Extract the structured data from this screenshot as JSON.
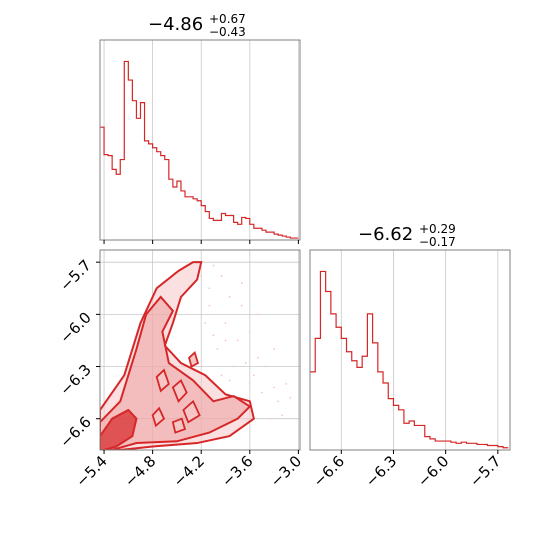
{
  "colors": {
    "series": "#d62728",
    "fill_light": "#f6c6c6",
    "fill_mid": "#ee9a9a",
    "grid": "#c8c8c8",
    "frame": "#808080"
  },
  "chart_data": [
    {
      "type": "area",
      "panel": "top-left marginal histogram (parameter 1)",
      "title_value": "−4.86",
      "title_upper": "+0.67",
      "title_lower": "−0.43",
      "xlim": [
        -5.45,
        -2.98
      ],
      "grid": true,
      "bin_edges": [
        -5.45,
        -5.4,
        -5.35,
        -5.3,
        -5.25,
        -5.2,
        -5.15,
        -5.1,
        -5.05,
        -5.0,
        -4.95,
        -4.9,
        -4.85,
        -4.8,
        -4.75,
        -4.7,
        -4.65,
        -4.6,
        -4.55,
        -4.5,
        -4.45,
        -4.4,
        -4.35,
        -4.3,
        -4.25,
        -4.2,
        -4.15,
        -4.1,
        -4.05,
        -4.0,
        -3.95,
        -3.9,
        -3.85,
        -3.8,
        -3.75,
        -3.7,
        -3.65,
        -3.6,
        -3.55,
        -3.5,
        -3.45,
        -3.4,
        -3.35,
        -3.3,
        -3.25,
        -3.2,
        -3.15,
        -3.1,
        -3.05,
        -3.0
      ],
      "counts": [
        115,
        87,
        86,
        72,
        67,
        82,
        182,
        163,
        142,
        124,
        140,
        101,
        98,
        94,
        90,
        86,
        82,
        62,
        54,
        60,
        50,
        44,
        44,
        42,
        40,
        35,
        29,
        22,
        20,
        20,
        27,
        25,
        25,
        18,
        16,
        23,
        22,
        16,
        12,
        12,
        10,
        8,
        8,
        6,
        5,
        4,
        3,
        2,
        2
      ],
      "x_ticks": [
        -5.4,
        -4.8,
        -4.2,
        -3.6,
        -3.0
      ]
    },
    {
      "type": "area",
      "panel": "bottom-right marginal histogram (parameter 2)",
      "title_value": "−6.62",
      "title_upper": "+0.29",
      "title_lower": "−0.17",
      "xlim": [
        -6.78,
        -5.63
      ],
      "grid": true,
      "bin_edges": [
        -6.78,
        -6.75,
        -6.72,
        -6.69,
        -6.66,
        -6.63,
        -6.6,
        -6.57,
        -6.54,
        -6.51,
        -6.48,
        -6.45,
        -6.42,
        -6.39,
        -6.36,
        -6.33,
        -6.3,
        -6.27,
        -6.24,
        -6.21,
        -6.18,
        -6.15,
        -6.12,
        -6.09,
        -6.06,
        -6.03,
        -6.0,
        -5.97,
        -5.94,
        -5.91,
        -5.88,
        -5.85,
        -5.82,
        -5.79,
        -5.76,
        -5.73,
        -5.7,
        -5.67,
        -5.64
      ],
      "counts": [
        70,
        100,
        160,
        142,
        122,
        110,
        100,
        88,
        80,
        74,
        84,
        122,
        96,
        70,
        60,
        46,
        40,
        36,
        24,
        26,
        22,
        22,
        12,
        10,
        8,
        8,
        8,
        7,
        6,
        7,
        6,
        6,
        5,
        5,
        4,
        4,
        3,
        2
      ],
      "x_ticks": [
        "−6.6",
        "−6.3",
        "−6.0",
        "−5.7"
      ],
      "x_tick_values": [
        -6.6,
        -6.3,
        -6.0,
        -5.7
      ]
    },
    {
      "type": "heatmap",
      "panel": "bottom-left 2D joint density (parameter 1 vs parameter 2)",
      "xlim": [
        -5.45,
        -2.98
      ],
      "ylim": [
        -6.78,
        -5.63
      ],
      "grid": true,
      "x_ticks": [
        -5.4,
        -4.8,
        -4.2,
        -3.6,
        -3.0
      ],
      "x_tick_labels": [
        "−5.4",
        "−4.8",
        "−4.2",
        "−3.6",
        "−3.0"
      ],
      "y_ticks": [
        -5.7,
        -6.0,
        -6.3,
        -6.6
      ],
      "y_tick_labels": [
        "−5.7",
        "−6.0",
        "−6.3",
        "−6.6"
      ],
      "high_density_region": [
        [
          -5.45,
          -6.78
        ],
        [
          -5.45,
          -6.7
        ],
        [
          -5.3,
          -6.6
        ],
        [
          -5.1,
          -6.55
        ],
        [
          -5.0,
          -6.6
        ],
        [
          -5.05,
          -6.7
        ],
        [
          -5.25,
          -6.76
        ],
        [
          -5.4,
          -6.78
        ]
      ],
      "mid_density_contour": [
        [
          -5.45,
          -6.78
        ],
        [
          -5.45,
          -6.62
        ],
        [
          -5.2,
          -6.5
        ],
        [
          -5.0,
          -6.2
        ],
        [
          -4.88,
          -6.0
        ],
        [
          -4.7,
          -5.9
        ],
        [
          -4.55,
          -5.98
        ],
        [
          -4.68,
          -6.1
        ],
        [
          -4.6,
          -6.28
        ],
        [
          -4.3,
          -6.38
        ],
        [
          -4.05,
          -6.5
        ],
        [
          -3.8,
          -6.47
        ],
        [
          -3.6,
          -6.53
        ],
        [
          -3.75,
          -6.6
        ],
        [
          -4.1,
          -6.68
        ],
        [
          -4.5,
          -6.73
        ],
        [
          -5.0,
          -6.74
        ],
        [
          -5.3,
          -6.78
        ]
      ],
      "outer_contour": [
        [
          -5.45,
          -6.78
        ],
        [
          -5.45,
          -6.55
        ],
        [
          -5.15,
          -6.35
        ],
        [
          -4.95,
          -6.05
        ],
        [
          -4.75,
          -5.85
        ],
        [
          -4.48,
          -5.75
        ],
        [
          -4.3,
          -5.7
        ],
        [
          -4.2,
          -5.7
        ],
        [
          -4.25,
          -5.8
        ],
        [
          -4.45,
          -5.9
        ],
        [
          -4.55,
          -6.05
        ],
        [
          -4.65,
          -6.18
        ],
        [
          -4.45,
          -6.28
        ],
        [
          -4.15,
          -6.35
        ],
        [
          -3.9,
          -6.46
        ],
        [
          -3.6,
          -6.5
        ],
        [
          -3.55,
          -6.6
        ],
        [
          -3.85,
          -6.7
        ],
        [
          -4.25,
          -6.74
        ],
        [
          -4.8,
          -6.76
        ],
        [
          -5.2,
          -6.78
        ]
      ],
      "small_contours": [
        [
          [
            -4.55,
            -6.42
          ],
          [
            -4.45,
            -6.38
          ],
          [
            -4.38,
            -6.45
          ],
          [
            -4.48,
            -6.5
          ]
        ],
        [
          [
            -4.42,
            -6.55
          ],
          [
            -4.3,
            -6.5
          ],
          [
            -4.22,
            -6.58
          ],
          [
            -4.36,
            -6.62
          ]
        ],
        [
          [
            -4.75,
            -6.36
          ],
          [
            -4.66,
            -6.32
          ],
          [
            -4.6,
            -6.4
          ],
          [
            -4.7,
            -6.44
          ]
        ],
        [
          [
            -4.55,
            -6.62
          ],
          [
            -4.44,
            -6.6
          ],
          [
            -4.4,
            -6.66
          ],
          [
            -4.52,
            -6.68
          ]
        ],
        [
          [
            -4.8,
            -6.58
          ],
          [
            -4.72,
            -6.54
          ],
          [
            -4.66,
            -6.6
          ],
          [
            -4.76,
            -6.64
          ]
        ],
        [
          [
            -4.35,
            -6.25
          ],
          [
            -4.28,
            -6.22
          ],
          [
            -4.24,
            -6.28
          ],
          [
            -4.32,
            -6.3
          ]
        ]
      ],
      "scatter_points": [
        [
          -4.05,
          -5.72
        ],
        [
          -3.95,
          -5.78
        ],
        [
          -3.85,
          -5.9
        ],
        [
          -3.7,
          -5.95
        ],
        [
          -4.1,
          -5.85
        ],
        [
          -3.9,
          -6.05
        ],
        [
          -3.75,
          -6.15
        ],
        [
          -3.6,
          -6.1
        ],
        [
          -3.5,
          -6.25
        ],
        [
          -3.4,
          -6.3
        ],
        [
          -3.55,
          -6.35
        ],
        [
          -3.3,
          -6.42
        ],
        [
          -3.25,
          -6.5
        ],
        [
          -3.45,
          -6.45
        ],
        [
          -3.65,
          -6.28
        ],
        [
          -3.8,
          -6.3
        ],
        [
          -4.0,
          -6.2
        ],
        [
          -3.95,
          -6.35
        ],
        [
          -4.15,
          -6.05
        ],
        [
          -4.05,
          -6.12
        ],
        [
          -3.2,
          -6.58
        ],
        [
          -3.35,
          -6.6
        ],
        [
          -3.15,
          -6.4
        ],
        [
          -3.5,
          -6.0
        ],
        [
          -3.7,
          -5.82
        ],
        [
          -4.2,
          -5.78
        ],
        [
          -3.6,
          -6.4
        ],
        [
          -3.85,
          -6.38
        ],
        [
          -3.1,
          -6.48
        ],
        [
          -3.3,
          -6.2
        ],
        [
          -4.1,
          -5.95
        ],
        [
          -3.9,
          -6.15
        ]
      ]
    }
  ]
}
